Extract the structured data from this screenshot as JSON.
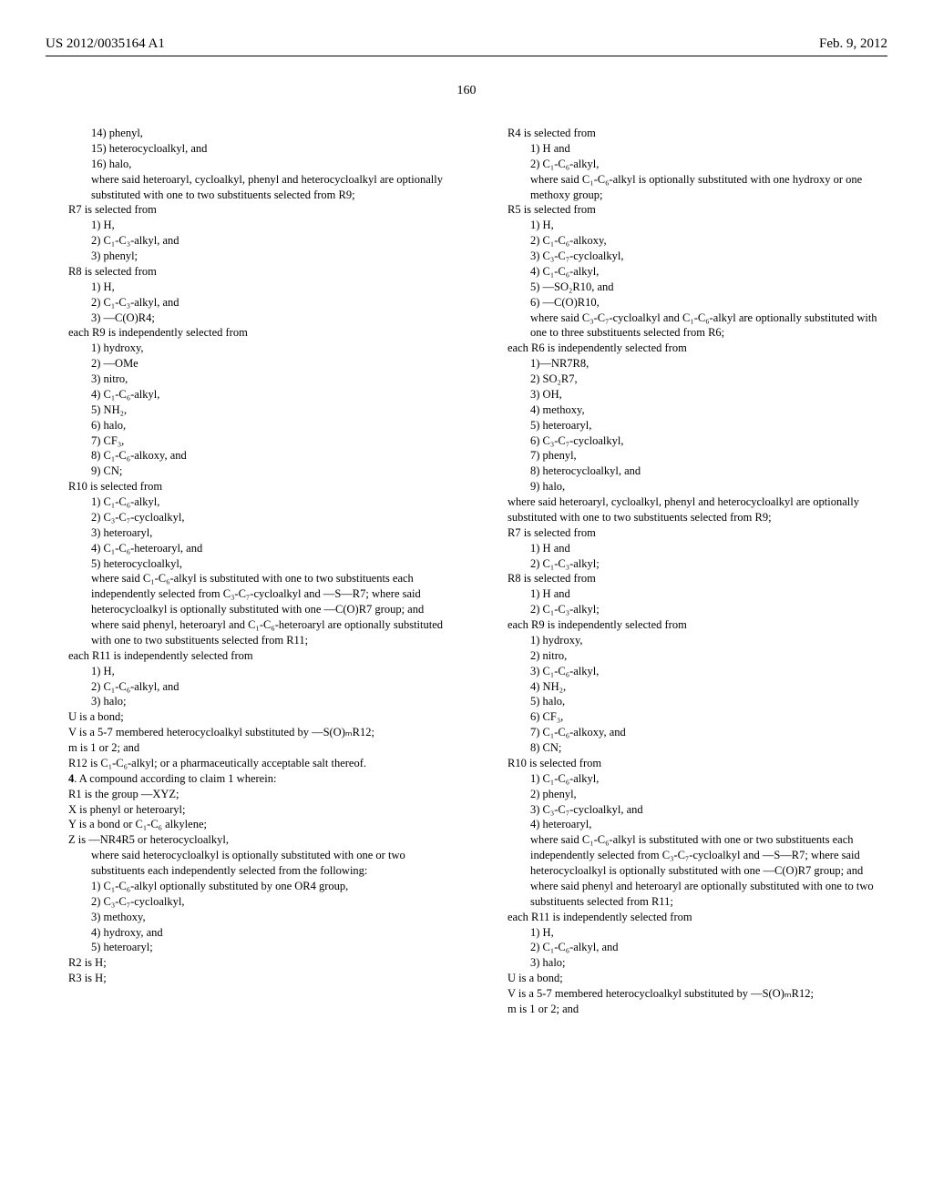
{
  "header": {
    "pub_number": "US 2012/0035164 A1",
    "date": "Feb. 9, 2012"
  },
  "page_number": "160",
  "left_column": [
    {
      "indent": 2,
      "text": "14) phenyl,"
    },
    {
      "indent": 2,
      "text": "15) heterocycloalkyl, and"
    },
    {
      "indent": 2,
      "text": "16) halo,"
    },
    {
      "indent": 2,
      "text": "where said heteroaryl, cycloalkyl, phenyl and heterocycloalkyl are optionally substituted with one to two substituents selected from R9;"
    },
    {
      "indent": 1,
      "text": "R7 is selected from"
    },
    {
      "indent": 2,
      "text": "1) H,"
    },
    {
      "indent": 2,
      "text": "2) C₁-C₃-alkyl, and"
    },
    {
      "indent": 2,
      "text": "3) phenyl;"
    },
    {
      "indent": 1,
      "text": "R8 is selected from"
    },
    {
      "indent": 2,
      "text": "1) H,"
    },
    {
      "indent": 2,
      "text": "2) C₁-C₃-alkyl, and"
    },
    {
      "indent": 2,
      "text": "3) —C(O)R4;"
    },
    {
      "indent": 1,
      "text": "each R9 is independently selected from"
    },
    {
      "indent": 2,
      "text": "1) hydroxy,"
    },
    {
      "indent": 2,
      "text": "2) —OMe"
    },
    {
      "indent": 2,
      "text": "3) nitro,"
    },
    {
      "indent": 2,
      "text": "4) C₁-C₆-alkyl,"
    },
    {
      "indent": 2,
      "text": "5) NH₂,"
    },
    {
      "indent": 2,
      "text": "6) halo,"
    },
    {
      "indent": 2,
      "text": "7) CF₃,"
    },
    {
      "indent": 2,
      "text": "8) C₁-C₆-alkoxy, and"
    },
    {
      "indent": 2,
      "text": "9) CN;"
    },
    {
      "indent": 1,
      "text": "R10 is selected from"
    },
    {
      "indent": 2,
      "text": "1) C₁-C₆-alkyl,"
    },
    {
      "indent": 2,
      "text": "2) C₃-C₇-cycloalkyl,"
    },
    {
      "indent": 2,
      "text": "3) heteroaryl,"
    },
    {
      "indent": 2,
      "text": "4) C₁-C₆-heteroaryl, and"
    },
    {
      "indent": 2,
      "text": "5) heterocycloalkyl,"
    },
    {
      "indent": 2,
      "text": "where said C₁-C₆-alkyl is substituted with one to two substituents each independently selected from C₃-C₇-cycloalkyl and —S—R7; where said heterocycloalkyl is optionally substituted with one —C(O)R7 group; and where said phenyl, heteroaryl and C₁-C₆-heteroaryl are optionally substituted with one to two substituents selected from R11;"
    },
    {
      "indent": 1,
      "text": "each R11 is independently selected from"
    },
    {
      "indent": 2,
      "text": "1) H,"
    },
    {
      "indent": 2,
      "text": "2) C₁-C₆-alkyl, and"
    },
    {
      "indent": 2,
      "text": "3) halo;"
    },
    {
      "indent": 1,
      "text": "U is a bond;"
    },
    {
      "indent": 1,
      "text": "V is a 5-7 membered heterocycloalkyl substituted by —S(O)ₘR12;"
    },
    {
      "indent": 1,
      "text": "m is 1 or 2; and"
    },
    {
      "indent": 1,
      "text": "R12 is C₁-C₆-alkyl; or a pharmaceutically acceptable salt thereof."
    },
    {
      "indent": 1,
      "text": "4. A compound according to claim 1 wherein:",
      "bold_prefix": "4"
    },
    {
      "indent": 1,
      "text": "R1 is the group —XYZ;"
    },
    {
      "indent": 1,
      "text": "X is phenyl or heteroaryl;"
    },
    {
      "indent": 1,
      "text": "Y is a bond or C₁-C₆ alkylene;"
    },
    {
      "indent": 1,
      "text": "Z is —NR4R5 or heterocycloalkyl,"
    },
    {
      "indent": 2,
      "text": "where said heterocycloalkyl is optionally substituted with one or two substituents each independently selected from the following:"
    },
    {
      "indent": 2,
      "text": "1) C₁-C₆-alkyl optionally substituted by one OR4 group,"
    },
    {
      "indent": 2,
      "text": "2) C₃-C₇-cycloalkyl,"
    },
    {
      "indent": 2,
      "text": "3) methoxy,"
    },
    {
      "indent": 2,
      "text": "4) hydroxy, and"
    },
    {
      "indent": 2,
      "text": "5) heteroaryl;"
    },
    {
      "indent": 1,
      "text": "R2 is H;"
    },
    {
      "indent": 1,
      "text": "R3 is H;"
    }
  ],
  "right_column": [
    {
      "indent": 1,
      "text": "R4 is selected from"
    },
    {
      "indent": 2,
      "text": "1) H and"
    },
    {
      "indent": 2,
      "text": "2) C₁-C₆-alkyl,"
    },
    {
      "indent": 2,
      "text": "where said C₁-C₆-alkyl is optionally substituted with one hydroxy or one methoxy group;"
    },
    {
      "indent": 1,
      "text": "R5 is selected from"
    },
    {
      "indent": 2,
      "text": "1) H,"
    },
    {
      "indent": 2,
      "text": "2) C₁-C₆-alkoxy,"
    },
    {
      "indent": 2,
      "text": "3) C₃-C₇-cycloalkyl,"
    },
    {
      "indent": 2,
      "text": "4) C₁-C₆-alkyl,"
    },
    {
      "indent": 2,
      "text": "5) —SO₂R10, and"
    },
    {
      "indent": 2,
      "text": "6) —C(O)R10,"
    },
    {
      "indent": 2,
      "text": "where said C₃-C₇-cycloalkyl and C₁-C₆-alkyl are optionally substituted with one to three substituents selected from R6;"
    },
    {
      "indent": 1,
      "text": "each R6 is independently selected from"
    },
    {
      "indent": 2,
      "text": "1)—NR7R8,"
    },
    {
      "indent": 2,
      "text": "2) SO₂R7,"
    },
    {
      "indent": 2,
      "text": "3) OH,"
    },
    {
      "indent": 2,
      "text": "4) methoxy,"
    },
    {
      "indent": 2,
      "text": "5) heteroaryl,"
    },
    {
      "indent": 2,
      "text": "6) C₃-C₇-cycloalkyl,"
    },
    {
      "indent": 2,
      "text": "7) phenyl,"
    },
    {
      "indent": 2,
      "text": "8) heterocycloalkyl, and"
    },
    {
      "indent": 2,
      "text": "9) halo,"
    },
    {
      "indent": 1,
      "text": "where said heteroaryl, cycloalkyl, phenyl and heterocycloalkyl are optionally substituted with one to two substituents selected from R9;"
    },
    {
      "indent": 1,
      "text": "R7 is selected from"
    },
    {
      "indent": 2,
      "text": "1) H and"
    },
    {
      "indent": 2,
      "text": "2) C₁-C₃-alkyl;"
    },
    {
      "indent": 1,
      "text": "R8 is selected from"
    },
    {
      "indent": 2,
      "text": "1) H and"
    },
    {
      "indent": 2,
      "text": "2) C₁-C₃-alkyl;"
    },
    {
      "indent": 1,
      "text": "each R9 is independently selected from"
    },
    {
      "indent": 2,
      "text": "1) hydroxy,"
    },
    {
      "indent": 2,
      "text": "2) nitro,"
    },
    {
      "indent": 2,
      "text": "3) C₁-C₆-alkyl,"
    },
    {
      "indent": 2,
      "text": "4) NH₂,"
    },
    {
      "indent": 2,
      "text": "5) halo,"
    },
    {
      "indent": 2,
      "text": "6) CF₃,"
    },
    {
      "indent": 2,
      "text": "7) C₁-C₆-alkoxy, and"
    },
    {
      "indent": 2,
      "text": "8) CN;"
    },
    {
      "indent": 1,
      "text": "R10 is selected from"
    },
    {
      "indent": 2,
      "text": "1) C₁-C₆-alkyl,"
    },
    {
      "indent": 2,
      "text": "2) phenyl,"
    },
    {
      "indent": 2,
      "text": "3) C₃-C₇-cycloalkyl, and"
    },
    {
      "indent": 2,
      "text": "4) heteroaryl,"
    },
    {
      "indent": 2,
      "text": "where said C₁-C₆-alkyl is substituted with one or two substituents each independently selected from C₃-C₇-cycloalkyl and —S—R7; where said heterocycloalkyl is optionally substituted with one —C(O)R7 group; and where said phenyl and heteroaryl are optionally substituted with one to two substituents selected from R11;"
    },
    {
      "indent": 1,
      "text": "each R11 is independently selected from"
    },
    {
      "indent": 2,
      "text": "1) H,"
    },
    {
      "indent": 2,
      "text": "2) C₁-C₆-alkyl, and"
    },
    {
      "indent": 2,
      "text": "3) halo;"
    },
    {
      "indent": 1,
      "text": "U is a bond;"
    },
    {
      "indent": 1,
      "text": "V is a 5-7 membered heterocycloalkyl substituted by —S(O)ₘR12;"
    },
    {
      "indent": 1,
      "text": "m is 1 or 2; and"
    }
  ]
}
